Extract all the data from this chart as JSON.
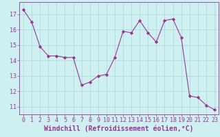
{
  "x": [
    0,
    1,
    2,
    3,
    4,
    5,
    6,
    7,
    8,
    9,
    10,
    11,
    12,
    13,
    14,
    15,
    16,
    17,
    18,
    19,
    20,
    21,
    22,
    23
  ],
  "y": [
    17.3,
    16.5,
    14.9,
    14.3,
    14.3,
    14.2,
    14.2,
    12.4,
    12.6,
    13.0,
    13.1,
    14.2,
    15.9,
    15.8,
    16.6,
    15.8,
    15.2,
    16.6,
    16.7,
    15.5,
    11.7,
    11.6,
    11.1,
    10.8
  ],
  "line_color": "#993399",
  "marker": "D",
  "marker_size": 2.2,
  "bg_color": "#cff0f0",
  "grid_color": "#aad4d4",
  "xlabel": "Windchill (Refroidissement éolien,°C)",
  "xlabel_fontsize": 7.0,
  "tick_fontsize": 6.0,
  "ylim": [
    10.5,
    17.8
  ],
  "yticks": [
    11,
    12,
    13,
    14,
    15,
    16,
    17
  ],
  "xticks": [
    0,
    1,
    2,
    3,
    4,
    5,
    6,
    7,
    8,
    9,
    10,
    11,
    12,
    13,
    14,
    15,
    16,
    17,
    18,
    19,
    20,
    21,
    22,
    23
  ]
}
